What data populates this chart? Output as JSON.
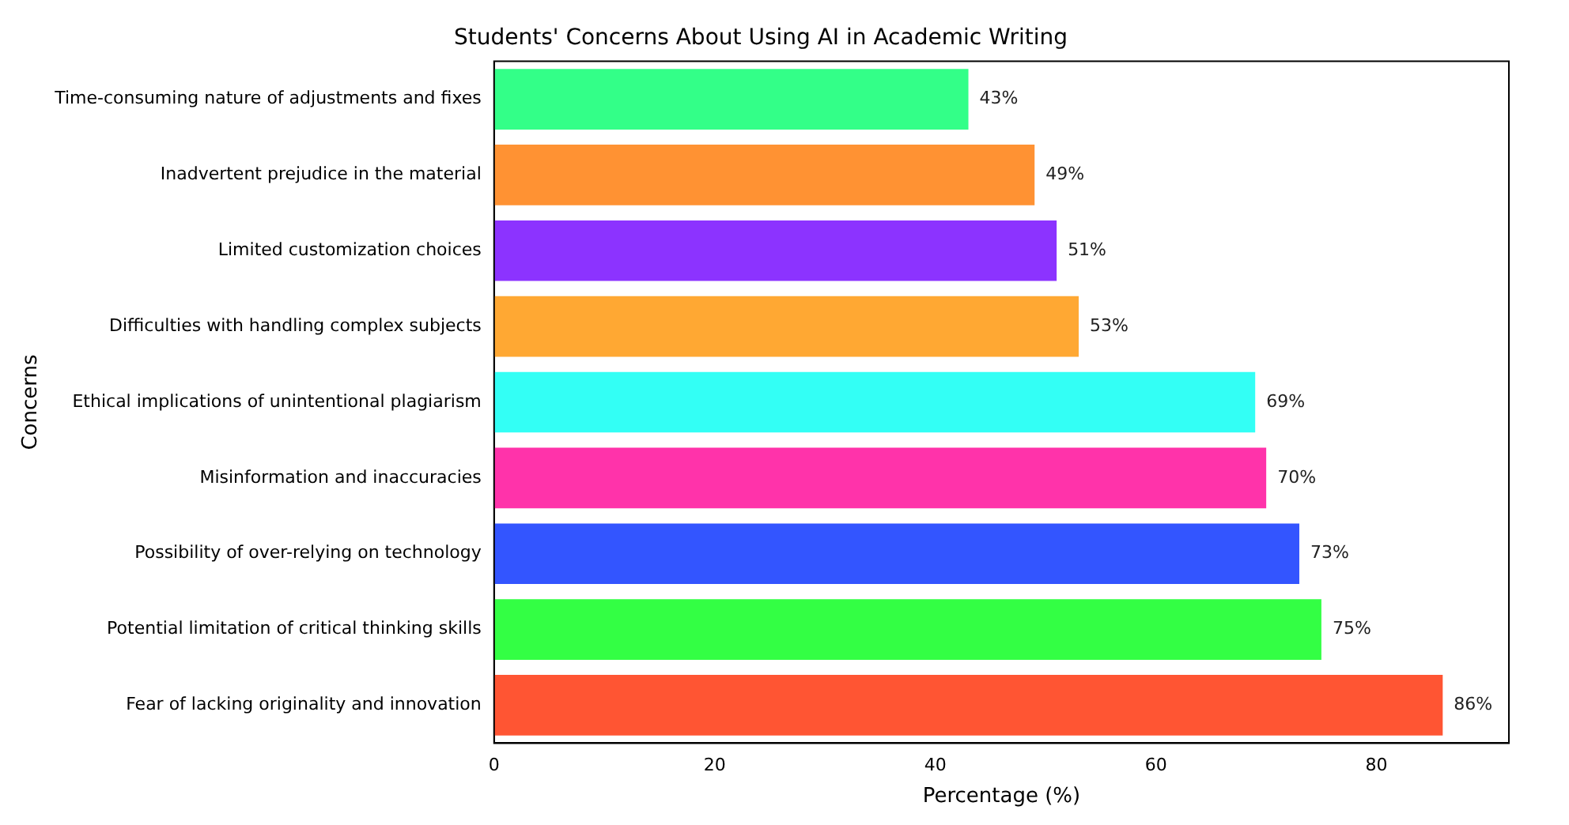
{
  "chart_data": {
    "type": "bar",
    "orientation": "horizontal",
    "title": "Students' Concerns About Using AI in Academic Writing",
    "xlabel": "Percentage (%)",
    "ylabel": "Concerns",
    "categories": [
      "Time-consuming nature of adjustments and fixes",
      "Inadvertent prejudice in the material",
      "Limited customization choices",
      "Difficulties with handling complex subjects",
      "Ethical implications of unintentional plagiarism",
      "Misinformation and inaccuracies",
      "Possibility of over-relying on technology",
      "Potential limitation of critical thinking skills",
      "Fear of lacking originality and innovation"
    ],
    "values": [
      43,
      49,
      51,
      53,
      69,
      70,
      73,
      75,
      86
    ],
    "value_labels": [
      "43%",
      "49%",
      "51%",
      "53%",
      "69%",
      "70%",
      "73%",
      "75%",
      "86%"
    ],
    "colors": [
      "#33ff88",
      "#ff9233",
      "#8c33ff",
      "#ffa833",
      "#33fff5",
      "#ff33aa",
      "#3355ff",
      "#33ff44",
      "#ff5533"
    ],
    "xlim": [
      0,
      92
    ],
    "xticks": [
      0,
      20,
      40,
      60,
      80
    ],
    "grid": false,
    "legend": false
  }
}
